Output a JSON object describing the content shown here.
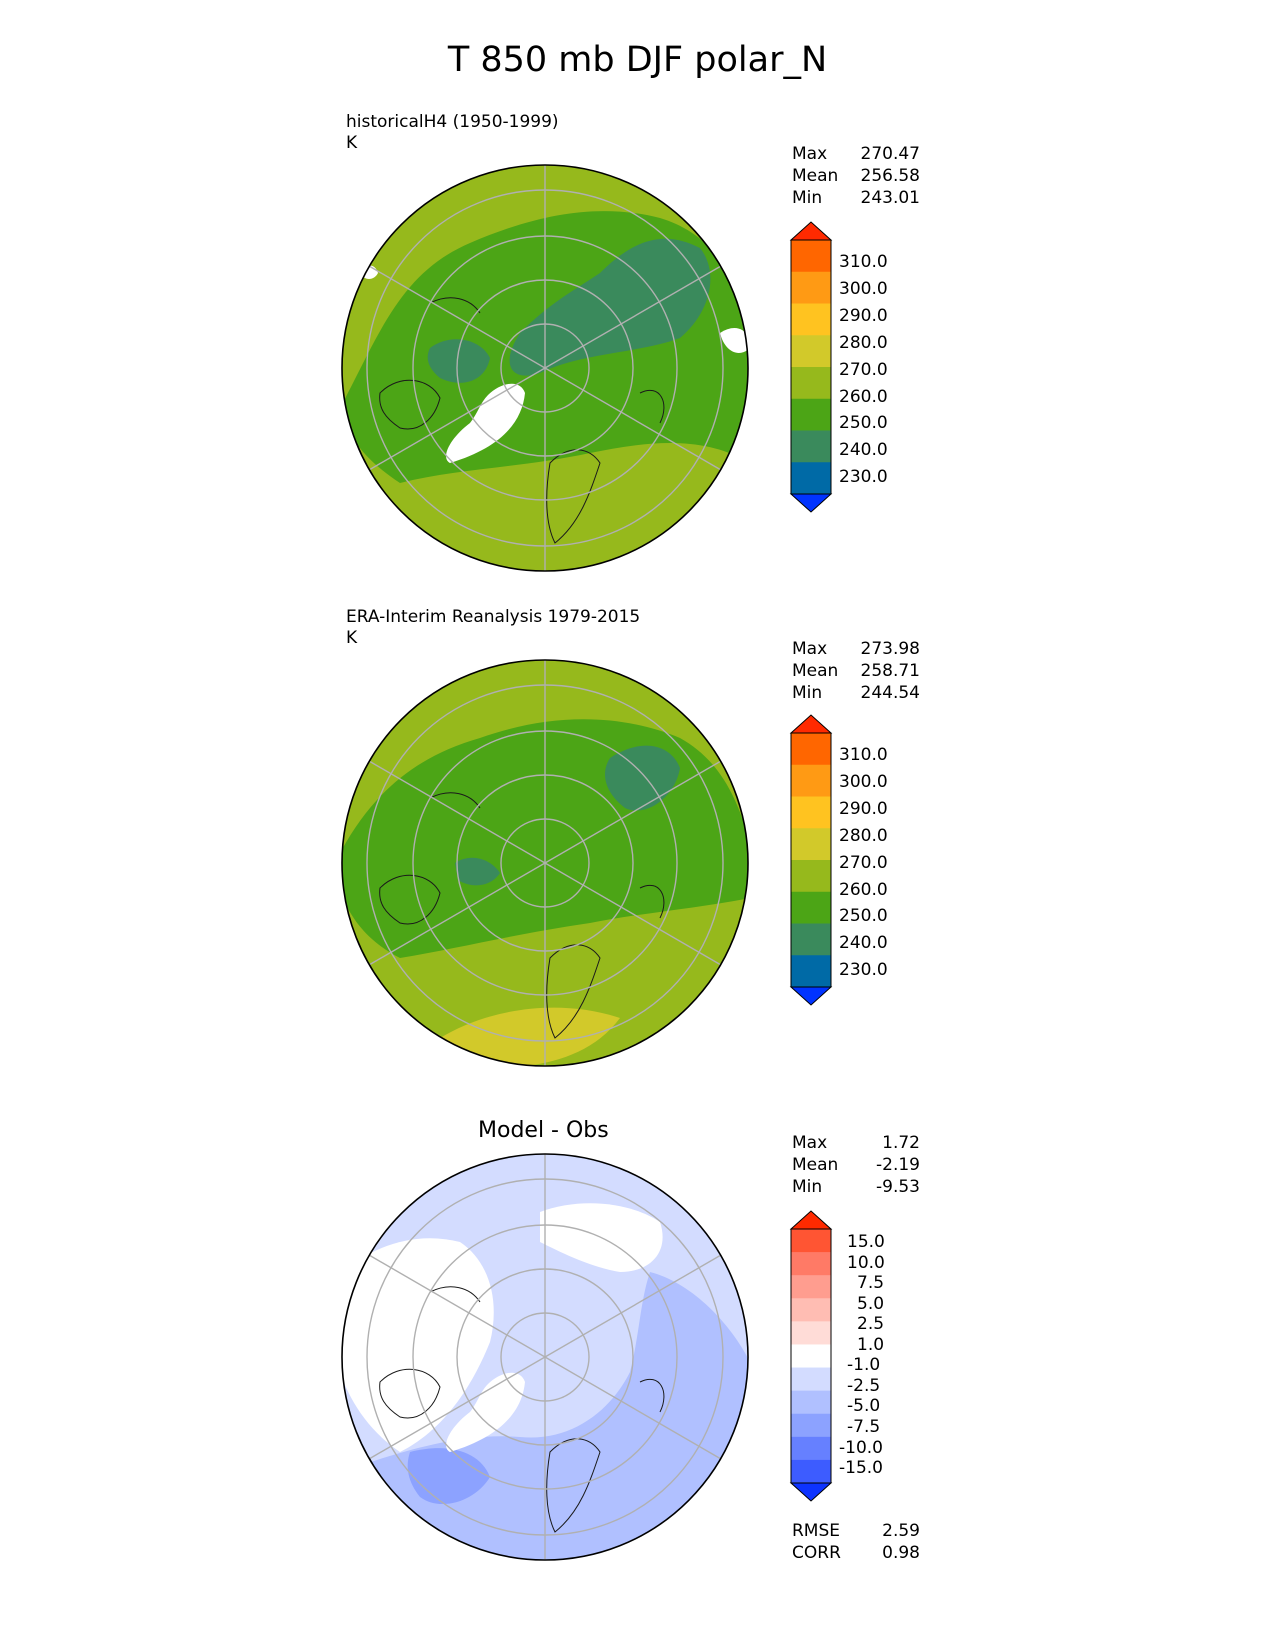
{
  "title": "T 850 mb DJF polar_N",
  "panels": [
    {
      "title": "historicalH4 (1950-1999)",
      "units": "K",
      "stats": [
        {
          "label": "Max",
          "value": "270.47"
        },
        {
          "label": "Mean",
          "value": "256.58"
        },
        {
          "label": "Min",
          "value": "243.01"
        }
      ]
    },
    {
      "title": "ERA-Interim Reanalysis 1979-2015",
      "units": "K",
      "stats": [
        {
          "label": "Max",
          "value": "273.98"
        },
        {
          "label": "Mean",
          "value": "258.71"
        },
        {
          "label": "Min",
          "value": "244.54"
        }
      ]
    },
    {
      "title": "Model - Obs",
      "units": "",
      "stats": [
        {
          "label": "Max",
          "value": "1.72"
        },
        {
          "label": "Mean",
          "value": "-2.19"
        },
        {
          "label": "Min",
          "value": "-9.53"
        }
      ],
      "extra_stats": [
        {
          "label": "RMSE",
          "value": "2.59"
        },
        {
          "label": "CORR",
          "value": "0.98"
        }
      ]
    }
  ],
  "colorbars": {
    "temperature": {
      "labels": [
        "310.0",
        "300.0",
        "290.0",
        "280.0",
        "270.0",
        "260.0",
        "250.0",
        "240.0",
        "230.0"
      ],
      "colors": [
        "#ff2a00",
        "#ff6600",
        "#ff9a14",
        "#ffc320",
        "#d2c92a",
        "#96b91c",
        "#4ca516",
        "#3a8a5c",
        "#006aa6",
        "#0033ff"
      ]
    },
    "difference": {
      "labels": [
        "15.0",
        "10.0",
        "7.5",
        "5.0",
        "2.5",
        "1.0",
        "-1.0",
        "-2.5",
        "-5.0",
        "-7.5",
        "-10.0",
        "-15.0"
      ],
      "colors": [
        "#ff2a00",
        "#ff5533",
        "#ff7a66",
        "#ff9d8f",
        "#ffbdb3",
        "#ffdcd7",
        "#ffffff",
        "#d3dcff",
        "#b0c0ff",
        "#8ca2ff",
        "#6680ff",
        "#3d5cff",
        "#0d33ff"
      ]
    }
  },
  "map_colors": {
    "land_outline": "#1a1a1a",
    "gridline": "#b0b0b0",
    "no_data": "#ffffff"
  }
}
